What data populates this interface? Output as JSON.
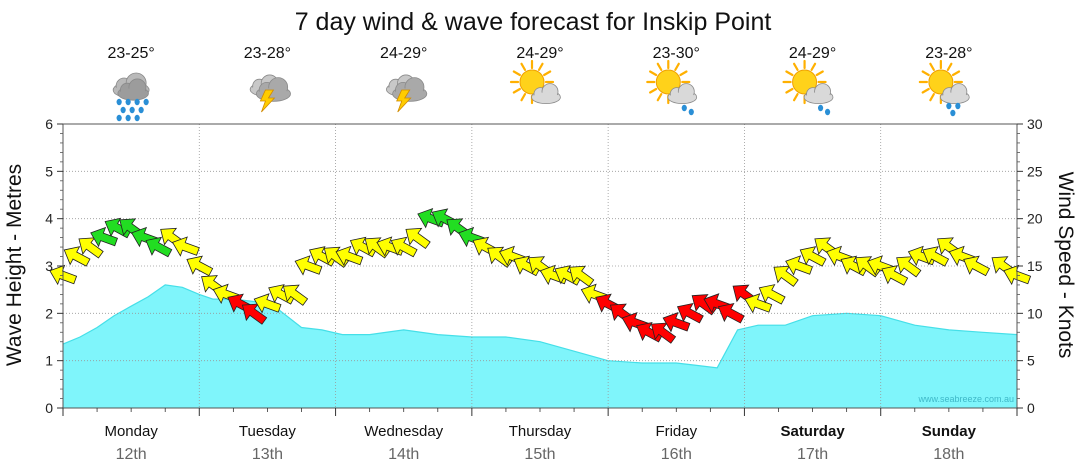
{
  "title": "7 day wind & wave forecast for Inskip Point",
  "watermark": "www.seabreeze.com.au",
  "y_left_label": "Wave Height - Metres",
  "y_right_label": "Wind Speed - Knots",
  "days": [
    {
      "name": "Monday",
      "date": "12th",
      "temp": "23-25°",
      "icon": "rain-cloud-icon",
      "bold": false
    },
    {
      "name": "Tuesday",
      "date": "13th",
      "temp": "23-28°",
      "icon": "thunderstorm-icon",
      "bold": false
    },
    {
      "name": "Wednesday",
      "date": "14th",
      "temp": "24-29°",
      "icon": "thunderstorm-icon",
      "bold": false
    },
    {
      "name": "Thursday",
      "date": "15th",
      "temp": "24-29°",
      "icon": "partly-cloudy-icon",
      "bold": false
    },
    {
      "name": "Friday",
      "date": "16th",
      "temp": "23-30°",
      "icon": "partly-cloudy-shower-icon",
      "bold": false
    },
    {
      "name": "Saturday",
      "date": "17th",
      "temp": "24-29°",
      "icon": "partly-cloudy-shower-icon",
      "bold": true
    },
    {
      "name": "Sunday",
      "date": "18th",
      "temp": "23-28°",
      "icon": "partly-cloudy-rain-icon",
      "bold": true
    }
  ],
  "colors": {
    "wave_fill": "#7ff5fb",
    "wave_line": "#45dfe8",
    "wind_light": "#ffff00",
    "wind_moderate": "#22dd22",
    "wind_strong": "#ff0000",
    "grid": "#999999",
    "plot_border": "#555555"
  },
  "chart_data": {
    "type": "area",
    "ylim_left": [
      0,
      6
    ],
    "ylim_right": [
      0,
      30
    ],
    "yticks_left": [
      "0",
      "1",
      "2",
      "3",
      "4",
      "5",
      "6"
    ],
    "yticks_right": [
      "0",
      "5",
      "10",
      "15",
      "20",
      "25",
      "30"
    ],
    "x_unit": "day index (0 = Monday 12th 00:00)",
    "wave_height": {
      "name": "Wave Height - Metres",
      "x": [
        0,
        0.125,
        0.25,
        0.375,
        0.5,
        0.625,
        0.75,
        0.875,
        1.0,
        1.1,
        1.25,
        1.4,
        1.55,
        1.75,
        1.9,
        2.05,
        2.25,
        2.5,
        2.75,
        3.0,
        3.25,
        3.5,
        3.75,
        4.0,
        4.25,
        4.5,
        4.65,
        4.8,
        4.95,
        5.1,
        5.3,
        5.5,
        5.75,
        6.0,
        6.25,
        6.5,
        6.75,
        7.0
      ],
      "y": [
        1.35,
        1.5,
        1.7,
        1.95,
        2.15,
        2.35,
        2.6,
        2.55,
        2.4,
        2.3,
        2.3,
        2.25,
        2.15,
        1.7,
        1.65,
        1.55,
        1.55,
        1.65,
        1.55,
        1.5,
        1.5,
        1.4,
        1.2,
        1.0,
        0.95,
        0.95,
        0.9,
        0.85,
        1.65,
        1.75,
        1.75,
        1.95,
        2.0,
        1.95,
        1.75,
        1.65,
        1.6,
        1.55
      ]
    },
    "wind": {
      "name": "Wind Speed - Knots",
      "x": [
        0.0,
        0.1,
        0.2,
        0.3,
        0.4,
        0.5,
        0.6,
        0.7,
        0.8,
        0.9,
        1.0,
        1.1,
        1.2,
        1.3,
        1.4,
        1.5,
        1.6,
        1.7,
        1.8,
        1.9,
        2.0,
        2.1,
        2.2,
        2.3,
        2.4,
        2.5,
        2.6,
        2.7,
        2.8,
        2.9,
        3.0,
        3.1,
        3.2,
        3.3,
        3.4,
        3.5,
        3.6,
        3.7,
        3.8,
        3.9,
        4.0,
        4.1,
        4.2,
        4.3,
        4.4,
        4.5,
        4.6,
        4.7,
        4.8,
        4.9,
        5.0,
        5.1,
        5.2,
        5.3,
        5.4,
        5.5,
        5.6,
        5.7,
        5.8,
        5.9,
        6.0,
        6.1,
        6.2,
        6.3,
        6.4,
        6.5,
        6.6,
        6.7,
        6.9,
        7.0
      ],
      "knots": [
        14,
        16,
        17,
        18,
        19,
        19,
        18,
        17,
        18,
        17,
        15,
        13,
        12,
        11,
        10,
        11,
        12,
        12,
        15,
        16,
        16,
        16,
        17,
        17,
        17,
        17,
        18,
        20,
        20,
        19,
        18,
        17,
        16,
        16,
        15,
        15,
        14,
        14,
        14,
        12,
        11,
        10,
        9,
        8,
        8,
        9,
        10,
        11,
        11,
        10,
        12,
        11,
        12,
        14,
        15,
        16,
        17,
        16,
        15,
        15,
        15,
        14,
        15,
        16,
        16,
        17,
        16,
        15,
        15,
        14
      ],
      "category": [
        "light",
        "light",
        "light",
        "moderate",
        "moderate",
        "moderate",
        "moderate",
        "moderate",
        "light",
        "light",
        "light",
        "light",
        "light",
        "strong",
        "strong",
        "light",
        "light",
        "light",
        "light",
        "light",
        "light",
        "light",
        "light",
        "light",
        "light",
        "light",
        "light",
        "moderate",
        "moderate",
        "moderate",
        "moderate",
        "light",
        "light",
        "light",
        "light",
        "light",
        "light",
        "light",
        "light",
        "light",
        "strong",
        "strong",
        "strong",
        "strong",
        "strong",
        "strong",
        "strong",
        "strong",
        "strong",
        "strong",
        "strong",
        "light",
        "light",
        "light",
        "light",
        "light",
        "light",
        "light",
        "light",
        "light",
        "light",
        "light",
        "light",
        "light",
        "light",
        "light",
        "light",
        "light",
        "light",
        "light"
      ]
    }
  }
}
